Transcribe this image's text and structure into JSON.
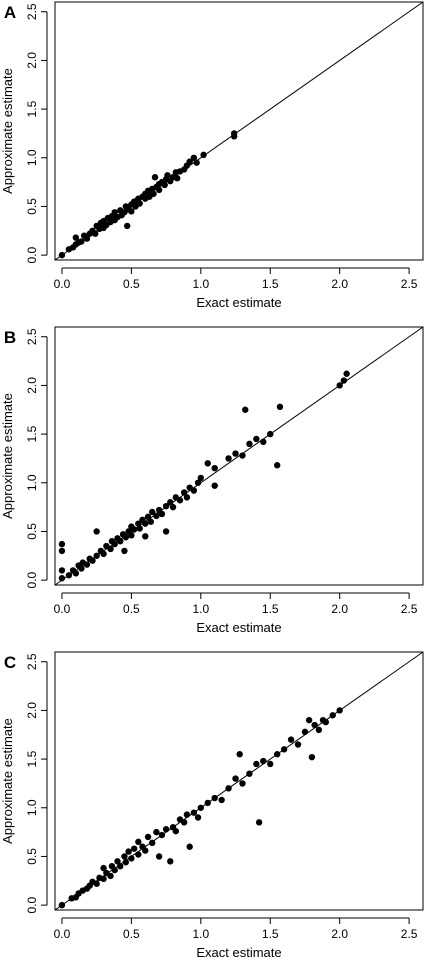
{
  "chart_data": [
    {
      "panel_label": "A",
      "type": "scatter",
      "xlabel": "Exact estimate",
      "ylabel": "Approximate estimate",
      "xlim": [
        -0.05,
        2.6
      ],
      "ylim": [
        -0.05,
        2.6
      ],
      "xticks": [
        "0.0",
        "0.5",
        "1.0",
        "1.5",
        "2.0",
        "2.5"
      ],
      "yticks": [
        "0.0",
        "0.5",
        "1.0",
        "1.5",
        "2.0",
        "2.5"
      ],
      "reference_line": "y = x",
      "grid": false,
      "points": [
        [
          0,
          0
        ],
        [
          0.05,
          0.06
        ],
        [
          0.08,
          0.08
        ],
        [
          0.1,
          0.11
        ],
        [
          0.12,
          0.13
        ],
        [
          0.1,
          0.18
        ],
        [
          0.14,
          0.14
        ],
        [
          0.16,
          0.2
        ],
        [
          0.18,
          0.17
        ],
        [
          0.2,
          0.22
        ],
        [
          0.22,
          0.25
        ],
        [
          0.24,
          0.22
        ],
        [
          0.25,
          0.3
        ],
        [
          0.27,
          0.27
        ],
        [
          0.28,
          0.33
        ],
        [
          0.3,
          0.28
        ],
        [
          0.3,
          0.35
        ],
        [
          0.32,
          0.31
        ],
        [
          0.33,
          0.38
        ],
        [
          0.35,
          0.34
        ],
        [
          0.36,
          0.4
        ],
        [
          0.38,
          0.36
        ],
        [
          0.38,
          0.44
        ],
        [
          0.4,
          0.39
        ],
        [
          0.42,
          0.46
        ],
        [
          0.43,
          0.41
        ],
        [
          0.45,
          0.44
        ],
        [
          0.46,
          0.5
        ],
        [
          0.47,
          0.3
        ],
        [
          0.48,
          0.47
        ],
        [
          0.5,
          0.52
        ],
        [
          0.5,
          0.45
        ],
        [
          0.52,
          0.55
        ],
        [
          0.53,
          0.5
        ],
        [
          0.55,
          0.58
        ],
        [
          0.56,
          0.53
        ],
        [
          0.58,
          0.6
        ],
        [
          0.6,
          0.58
        ],
        [
          0.6,
          0.63
        ],
        [
          0.62,
          0.66
        ],
        [
          0.63,
          0.6
        ],
        [
          0.65,
          0.68
        ],
        [
          0.66,
          0.63
        ],
        [
          0.67,
          0.8
        ],
        [
          0.68,
          0.7
        ],
        [
          0.7,
          0.67
        ],
        [
          0.7,
          0.73
        ],
        [
          0.72,
          0.75
        ],
        [
          0.74,
          0.72
        ],
        [
          0.75,
          0.78
        ],
        [
          0.76,
          0.82
        ],
        [
          0.78,
          0.76
        ],
        [
          0.8,
          0.8
        ],
        [
          0.82,
          0.85
        ],
        [
          0.83,
          0.79
        ],
        [
          0.85,
          0.86
        ],
        [
          0.88,
          0.88
        ],
        [
          0.9,
          0.92
        ],
        [
          0.92,
          0.96
        ],
        [
          0.95,
          1.0
        ],
        [
          0.97,
          0.95
        ],
        [
          1.02,
          1.03
        ],
        [
          1.24,
          1.22
        ],
        [
          1.24,
          1.25
        ]
      ]
    },
    {
      "panel_label": "B",
      "type": "scatter",
      "xlabel": "Exact estimate",
      "ylabel": "Approximate estimate",
      "xlim": [
        -0.05,
        2.6
      ],
      "ylim": [
        -0.05,
        2.6
      ],
      "xticks": [
        "0.0",
        "0.5",
        "1.0",
        "1.5",
        "2.0",
        "2.5"
      ],
      "yticks": [
        "0.0",
        "0.5",
        "1.0",
        "1.5",
        "2.0",
        "2.5"
      ],
      "reference_line": "y = x",
      "grid": false,
      "points": [
        [
          0,
          0.02
        ],
        [
          0,
          0.1
        ],
        [
          0,
          0.3
        ],
        [
          0,
          0.37
        ],
        [
          0.05,
          0.05
        ],
        [
          0.08,
          0.1
        ],
        [
          0.1,
          0.07
        ],
        [
          0.12,
          0.15
        ],
        [
          0.14,
          0.12
        ],
        [
          0.15,
          0.18
        ],
        [
          0.18,
          0.16
        ],
        [
          0.2,
          0.22
        ],
        [
          0.22,
          0.2
        ],
        [
          0.25,
          0.25
        ],
        [
          0.25,
          0.5
        ],
        [
          0.28,
          0.3
        ],
        [
          0.3,
          0.27
        ],
        [
          0.32,
          0.35
        ],
        [
          0.35,
          0.32
        ],
        [
          0.36,
          0.4
        ],
        [
          0.38,
          0.37
        ],
        [
          0.4,
          0.43
        ],
        [
          0.42,
          0.4
        ],
        [
          0.44,
          0.47
        ],
        [
          0.45,
          0.3
        ],
        [
          0.46,
          0.44
        ],
        [
          0.48,
          0.5
        ],
        [
          0.5,
          0.46
        ],
        [
          0.5,
          0.55
        ],
        [
          0.52,
          0.52
        ],
        [
          0.55,
          0.58
        ],
        [
          0.56,
          0.53
        ],
        [
          0.58,
          0.62
        ],
        [
          0.6,
          0.58
        ],
        [
          0.6,
          0.45
        ],
        [
          0.62,
          0.65
        ],
        [
          0.64,
          0.6
        ],
        [
          0.65,
          0.7
        ],
        [
          0.68,
          0.66
        ],
        [
          0.7,
          0.72
        ],
        [
          0.72,
          0.68
        ],
        [
          0.75,
          0.76
        ],
        [
          0.75,
          0.5
        ],
        [
          0.78,
          0.8
        ],
        [
          0.8,
          0.75
        ],
        [
          0.82,
          0.85
        ],
        [
          0.85,
          0.82
        ],
        [
          0.88,
          0.9
        ],
        [
          0.9,
          0.85
        ],
        [
          0.92,
          0.95
        ],
        [
          0.95,
          0.92
        ],
        [
          0.98,
          1.0
        ],
        [
          1.0,
          1.05
        ],
        [
          1.05,
          1.2
        ],
        [
          1.1,
          0.97
        ],
        [
          1.1,
          1.15
        ],
        [
          1.2,
          1.25
        ],
        [
          1.25,
          1.3
        ],
        [
          1.3,
          1.28
        ],
        [
          1.32,
          1.75
        ],
        [
          1.35,
          1.4
        ],
        [
          1.4,
          1.45
        ],
        [
          1.45,
          1.42
        ],
        [
          1.5,
          1.5
        ],
        [
          1.55,
          1.18
        ],
        [
          1.57,
          1.78
        ],
        [
          2.0,
          2.0
        ],
        [
          2.03,
          2.05
        ],
        [
          2.05,
          2.12
        ]
      ]
    },
    {
      "panel_label": "C",
      "type": "scatter",
      "xlabel": "Exact estimate",
      "ylabel": "Approximate estimate",
      "xlim": [
        -0.05,
        2.6
      ],
      "ylim": [
        -0.05,
        2.6
      ],
      "xticks": [
        "0.0",
        "0.5",
        "1.0",
        "1.5",
        "2.0",
        "2.5"
      ],
      "yticks": [
        "0.0",
        "0.5",
        "1.0",
        "1.5",
        "2.0",
        "2.5"
      ],
      "reference_line": "y = x",
      "grid": false,
      "points": [
        [
          0,
          0
        ],
        [
          0.07,
          0.07
        ],
        [
          0.1,
          0.08
        ],
        [
          0.12,
          0.12
        ],
        [
          0.15,
          0.15
        ],
        [
          0.18,
          0.17
        ],
        [
          0.2,
          0.2
        ],
        [
          0.22,
          0.24
        ],
        [
          0.25,
          0.22
        ],
        [
          0.27,
          0.28
        ],
        [
          0.3,
          0.27
        ],
        [
          0.3,
          0.38
        ],
        [
          0.32,
          0.33
        ],
        [
          0.35,
          0.3
        ],
        [
          0.36,
          0.4
        ],
        [
          0.38,
          0.36
        ],
        [
          0.4,
          0.45
        ],
        [
          0.42,
          0.4
        ],
        [
          0.45,
          0.5
        ],
        [
          0.46,
          0.44
        ],
        [
          0.48,
          0.55
        ],
        [
          0.5,
          0.48
        ],
        [
          0.52,
          0.58
        ],
        [
          0.55,
          0.52
        ],
        [
          0.55,
          0.65
        ],
        [
          0.58,
          0.6
        ],
        [
          0.6,
          0.56
        ],
        [
          0.62,
          0.7
        ],
        [
          0.65,
          0.64
        ],
        [
          0.68,
          0.75
        ],
        [
          0.7,
          0.5
        ],
        [
          0.72,
          0.72
        ],
        [
          0.75,
          0.78
        ],
        [
          0.78,
          0.45
        ],
        [
          0.8,
          0.8
        ],
        [
          0.82,
          0.76
        ],
        [
          0.85,
          0.88
        ],
        [
          0.88,
          0.85
        ],
        [
          0.9,
          0.93
        ],
        [
          0.92,
          0.6
        ],
        [
          0.95,
          0.95
        ],
        [
          0.98,
          0.9
        ],
        [
          1.0,
          1.0
        ],
        [
          1.05,
          1.05
        ],
        [
          1.1,
          1.1
        ],
        [
          1.15,
          1.08
        ],
        [
          1.2,
          1.2
        ],
        [
          1.25,
          1.3
        ],
        [
          1.28,
          1.55
        ],
        [
          1.3,
          1.25
        ],
        [
          1.35,
          1.35
        ],
        [
          1.4,
          1.45
        ],
        [
          1.42,
          0.85
        ],
        [
          1.45,
          1.48
        ],
        [
          1.5,
          1.45
        ],
        [
          1.55,
          1.55
        ],
        [
          1.6,
          1.6
        ],
        [
          1.65,
          1.7
        ],
        [
          1.7,
          1.65
        ],
        [
          1.75,
          1.78
        ],
        [
          1.78,
          1.9
        ],
        [
          1.8,
          1.52
        ],
        [
          1.82,
          1.85
        ],
        [
          1.85,
          1.8
        ],
        [
          1.88,
          1.9
        ],
        [
          1.9,
          1.88
        ],
        [
          1.95,
          1.95
        ],
        [
          2.0,
          2.0
        ]
      ]
    }
  ]
}
